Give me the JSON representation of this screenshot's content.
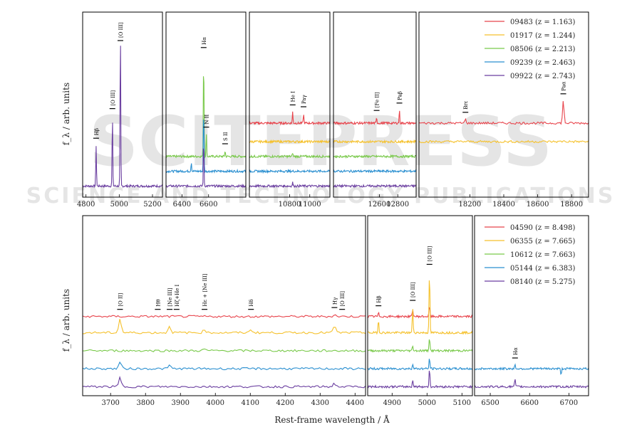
{
  "watermark": {
    "big": "SCITEPRESS",
    "small": "SCIENCE AND TECHNOLOGY PUBLICATIONS"
  },
  "xlabel": "Rest-frame wavelength / Å",
  "ylabel_top": "f_λ / arb. units",
  "ylabel_bottom": "f_λ / arb. units",
  "chart_data": [
    {
      "type": "line",
      "name": "top-row",
      "series": [
        {
          "name": "09483 (z = 1.163)",
          "color": "#e8444c"
        },
        {
          "name": "01917 (z = 1.244)",
          "color": "#f5c12c"
        },
        {
          "name": "08506 (z = 2.213)",
          "color": "#79c94a"
        },
        {
          "name": "09239 (z = 2.463)",
          "color": "#2a8fd0"
        },
        {
          "name": "09922 (z = 2.743)",
          "color": "#6b3fa0"
        }
      ],
      "panels": [
        {
          "xlim": [
            4780,
            5260
          ],
          "xticks": [
            4800,
            5000,
            5200
          ],
          "lines": [
            {
              "label": "Hβ",
              "x": 4861
            },
            {
              "label": "[O III]",
              "x": 4959
            },
            {
              "label": "[O III]",
              "x": 5007
            }
          ],
          "traces": [
            {
              "series": 4,
              "peaks": [
                [
                  4861,
                  0.22
                ],
                [
                  4959,
                  0.38
                ],
                [
                  5007,
                  0.85
                ]
              ]
            }
          ]
        },
        {
          "xlim": [
            6280,
            6880
          ],
          "xticks": [
            6400,
            6600
          ],
          "lines": [
            {
              "label": "Hα",
              "x": 6563
            },
            {
              "label": "N II",
              "x": 6583
            },
            {
              "label": "S II",
              "x": 6724
            }
          ],
          "traces": [
            {
              "series": 2,
              "peaks": [
                [
                  6563,
                  0.55
                ],
                [
                  6583,
                  0.12
                ],
                [
                  6724,
                  0.03
                ]
              ]
            },
            {
              "series": 3,
              "peaks": [
                [
                  6563,
                  0.35
                ],
                [
                  6470,
                  0.05
                ]
              ]
            },
            {
              "series": 4,
              "peaks": [
                [
                  6563,
                  0.25
                ]
              ]
            }
          ]
        },
        {
          "xlim": [
            10400,
            11200
          ],
          "xticks": [
            10800,
            11000
          ],
          "lines": [
            {
              "label": "He I",
              "x": 10830
            },
            {
              "label": "Paγ",
              "x": 10938
            }
          ],
          "traces": [
            {
              "series": 0,
              "peaks": [
                [
                  10830,
                  0.06
                ],
                [
                  10938,
                  0.05
                ]
              ]
            },
            {
              "series": 1,
              "peaks": []
            },
            {
              "series": 2,
              "peaks": [
                [
                  10830,
                  0.02
                ]
              ]
            },
            {
              "series": 3,
              "peaks": []
            },
            {
              "series": 4,
              "peaks": [
                [
                  10830,
                  0.02
                ]
              ]
            }
          ]
        },
        {
          "xlim": [
            12100,
            13000
          ],
          "xticks": [
            12600,
            12800
          ],
          "lines": [
            {
              "label": "[Fe II]",
              "x": 12570
            },
            {
              "label": "Paβ",
              "x": 12818
            }
          ],
          "traces": [
            {
              "series": 0,
              "peaks": [
                [
                  12570,
                  0.03
                ],
                [
                  12818,
                  0.07
                ]
              ]
            },
            {
              "series": 1,
              "peaks": []
            },
            {
              "series": 2,
              "peaks": []
            },
            {
              "series": 3,
              "peaks": []
            },
            {
              "series": 4,
              "peaks": [
                [
                  12818,
                  0.01
                ]
              ]
            }
          ]
        },
        {
          "xlim": [
            17900,
            18900
          ],
          "xticks": [
            18200,
            18400,
            18600,
            18800
          ],
          "lines": [
            {
              "label": "Brε",
              "x": 18174
            },
            {
              "label": "Paα",
              "x": 18751
            }
          ],
          "traces": [
            {
              "series": 0,
              "peaks": [
                [
                  18174,
                  0.02
                ],
                [
                  18751,
                  0.12
                ]
              ]
            },
            {
              "series": 1,
              "peaks": [
                [
                  18751,
                  0.005
                ]
              ]
            }
          ]
        }
      ]
    },
    {
      "type": "line",
      "name": "bottom-row",
      "series": [
        {
          "name": "04590 (z = 8.498)",
          "color": "#e8444c"
        },
        {
          "name": "06355 (z = 7.665)",
          "color": "#f5c12c"
        },
        {
          "name": "10612 (z = 7.663)",
          "color": "#79c94a"
        },
        {
          "name": "05144 (z = 6.383)",
          "color": "#2a8fd0"
        },
        {
          "name": "08140 (z = 5.275)",
          "color": "#6b3fa0"
        }
      ],
      "panels": [
        {
          "xlim": [
            3620,
            4430
          ],
          "xticks": [
            3700,
            3800,
            3900,
            4000,
            4100,
            4200,
            4300,
            4400
          ],
          "lines": [
            {
              "label": "[O II]",
              "x": 3727
            },
            {
              "label": "Hθ",
              "x": 3835
            },
            {
              "label": "[Ne III]",
              "x": 3869
            },
            {
              "label": "Hζ+He I",
              "x": 3889
            },
            {
              "label": "Hε + [Ne III]",
              "x": 3969
            },
            {
              "label": "Hδ",
              "x": 4102
            },
            {
              "label": "Hγ",
              "x": 4341
            },
            {
              "label": "[O III]",
              "x": 4363
            }
          ],
          "traces": [
            {
              "series": 0,
              "peaks": [
                [
                  4341,
                  0.01
                ]
              ]
            },
            {
              "series": 1,
              "peaks": [
                [
                  3727,
                  0.08
                ],
                [
                  3869,
                  0.04
                ],
                [
                  3969,
                  0.02
                ],
                [
                  4102,
                  0.02
                ],
                [
                  4341,
                  0.04
                ]
              ]
            },
            {
              "series": 2,
              "peaks": [
                [
                  3969,
                  0.01
                ]
              ]
            },
            {
              "series": 3,
              "peaks": [
                [
                  3727,
                  0.04
                ],
                [
                  3869,
                  0.02
                ]
              ]
            },
            {
              "series": 4,
              "peaks": [
                [
                  3727,
                  0.05
                ],
                [
                  4341,
                  0.02
                ]
              ]
            }
          ]
        },
        {
          "xlim": [
            4830,
            5130
          ],
          "xticks": [
            4900,
            5000,
            5100
          ],
          "lines": [
            {
              "label": "Hβ",
              "x": 4861
            },
            {
              "label": "[O III]",
              "x": 4959
            },
            {
              "label": "[O III]",
              "x": 5007
            }
          ],
          "traces": [
            {
              "series": 0,
              "peaks": [
                [
                  4861,
                  0.02
                ],
                [
                  4959,
                  0.04
                ],
                [
                  5007,
                  0.06
                ]
              ]
            },
            {
              "series": 1,
              "peaks": [
                [
                  4861,
                  0.07
                ],
                [
                  4959,
                  0.14
                ],
                [
                  5007,
                  0.34
                ]
              ]
            },
            {
              "series": 2,
              "peaks": [
                [
                  4959,
                  0.03
                ],
                [
                  5007,
                  0.08
                ]
              ]
            },
            {
              "series": 3,
              "peaks": [
                [
                  4959,
                  0.03
                ],
                [
                  5007,
                  0.06
                ]
              ]
            },
            {
              "series": 4,
              "peaks": [
                [
                  4959,
                  0.04
                ],
                [
                  5007,
                  0.1
                ]
              ]
            }
          ]
        },
        {
          "xlim": [
            6460,
            6750
          ],
          "xticks": [
            6500,
            6600,
            6700
          ],
          "lines": [
            {
              "label": "Hα",
              "x": 6563
            }
          ],
          "traces": [
            {
              "series": 3,
              "peaks": [
                [
                  6563,
                  0.02
                ],
                [
                  6680,
                  -0.03
                ]
              ]
            },
            {
              "series": 4,
              "peaks": [
                [
                  6563,
                  0.04
                ]
              ]
            }
          ]
        }
      ]
    }
  ]
}
